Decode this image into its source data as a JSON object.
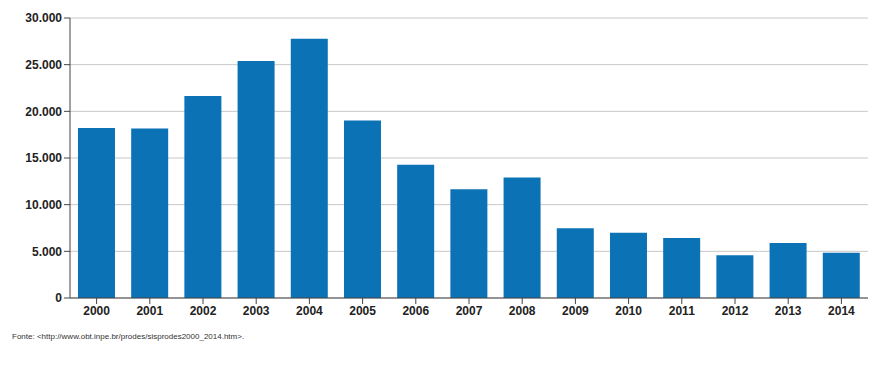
{
  "chart_data": {
    "type": "bar",
    "categories": [
      "2000",
      "2001",
      "2002",
      "2003",
      "2004",
      "2005",
      "2006",
      "2007",
      "2008",
      "2009",
      "2010",
      "2011",
      "2012",
      "2013",
      "2014"
    ],
    "values": [
      18226,
      18165,
      21651,
      25396,
      27772,
      19014,
      14286,
      11651,
      12911,
      7464,
      7000,
      6418,
      4571,
      5891,
      4848
    ],
    "color": "#0b72b5",
    "ylim": [
      0,
      30000
    ],
    "yticks": [
      0,
      {
        "value": 5000,
        "label": "5.000"
      },
      {
        "value": 10000,
        "label": "10.000"
      },
      {
        "value": 15000,
        "label": "15.000"
      },
      {
        "value": 20000,
        "label": "20.000"
      },
      {
        "value": 25000,
        "label": "25.000"
      },
      {
        "value": 30000,
        "label": "30.000"
      }
    ],
    "grid": true,
    "source": "Fonte: <http://www.obt.inpe.br/prodes/sisprodes2000_2014.htm>."
  }
}
